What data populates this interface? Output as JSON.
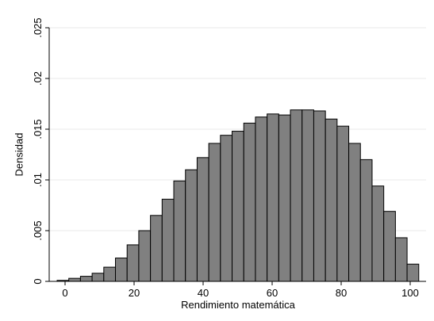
{
  "chart_data": {
    "type": "histogram",
    "xlabel": "Rendimiento matemática",
    "ylabel": "Densidad",
    "bins": [
      -2.3,
      1.08,
      4.46,
      7.84,
      11.22,
      14.6,
      17.98,
      21.36,
      24.74,
      28.12,
      31.5,
      34.88,
      38.26,
      41.64,
      45.02,
      48.4,
      51.78,
      55.16,
      58.54,
      61.92,
      65.3,
      68.68,
      72.06,
      75.44,
      78.82,
      82.2,
      85.58,
      88.96,
      92.34,
      95.72,
      99.1,
      102.48
    ],
    "values": [
      0.0001,
      0.0003,
      0.0005,
      0.0008,
      0.0014,
      0.0023,
      0.0036,
      0.005,
      0.0065,
      0.0081,
      0.0099,
      0.011,
      0.0122,
      0.0136,
      0.0144,
      0.0148,
      0.0156,
      0.0162,
      0.0165,
      0.0164,
      0.0169,
      0.0169,
      0.0168,
      0.016,
      0.0153,
      0.0136,
      0.012,
      0.0094,
      0.0069,
      0.0043,
      0.0017
    ],
    "color": "#808080",
    "xlim": [
      -4.6,
      104.6
    ],
    "xticks": [
      0,
      20,
      40,
      60,
      80,
      100
    ],
    "ylim": [
      0,
      0.025
    ],
    "yticks": [
      0,
      {
        "value": 0.005,
        "label": ".005"
      },
      {
        "value": 0.01,
        "label": ".01"
      },
      {
        "value": 0.015,
        "label": ".015"
      },
      {
        "value": 0.02,
        "label": ".02"
      },
      {
        "value": 0.025,
        "label": ".025"
      }
    ],
    "grid": true
  }
}
